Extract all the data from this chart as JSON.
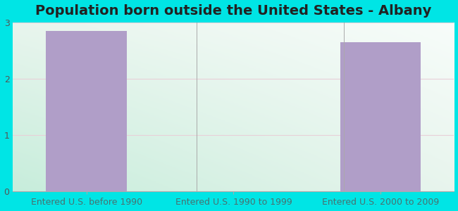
{
  "title": "Population born outside the United States - Albany",
  "categories": [
    "Entered U.S. before 1990",
    "Entered U.S. 1990 to 1999",
    "Entered U.S. 2000 to 2009"
  ],
  "values": [
    2.85,
    0,
    2.65
  ],
  "bar_color": "#b09ec8",
  "background_color": "#00e5e5",
  "bg_color_topleft": "#e8f5ee",
  "bg_color_topright": "#f0f8f4",
  "bg_color_bottomleft": "#c8eedc",
  "bg_color_bottomright": "#e8f5ee",
  "xticklabel_color": "#4a7070",
  "ytick_color": "#555555",
  "grid_color": "#e8d0d8",
  "ylim": [
    0,
    3
  ],
  "yticks": [
    0,
    1,
    2,
    3
  ],
  "title_fontsize": 14,
  "tick_fontsize": 9,
  "bar_width": 0.55,
  "xlim": [
    -0.5,
    2.5
  ]
}
